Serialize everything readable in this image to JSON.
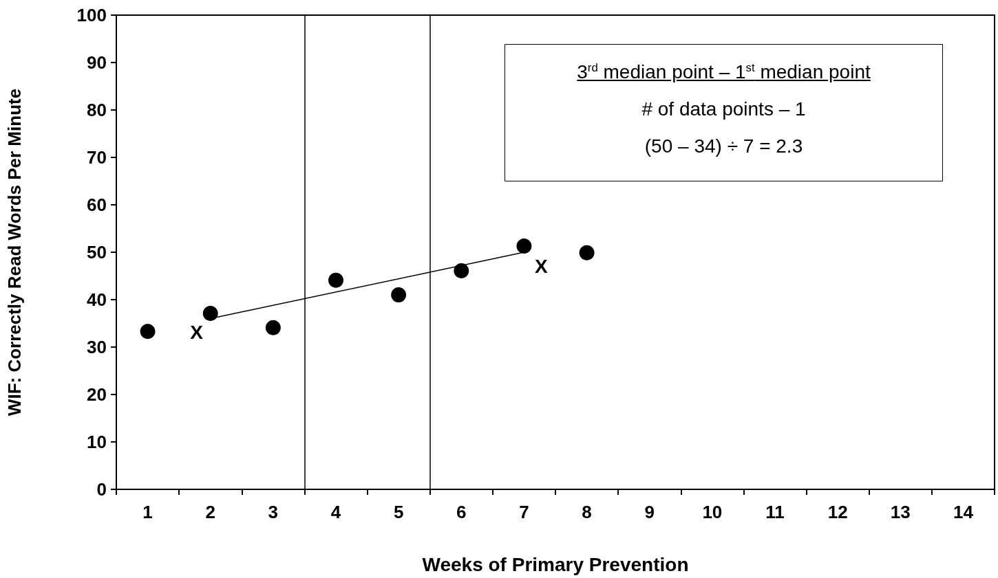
{
  "chart_data": {
    "type": "scatter",
    "xlabel": "Weeks of Primary Prevention",
    "ylabel": "WIF: Correctly Read Words Per Minute",
    "x": [
      1,
      2,
      3,
      4,
      5,
      6,
      7,
      8
    ],
    "series": [
      {
        "color": "#000000",
        "values": [
          33.3,
          37.1,
          34.1,
          44.1,
          41.0,
          46.1,
          51.3,
          49.9
        ]
      },
      {
        "type": "line",
        "color": "#000000",
        "x": [
          2,
          7
        ],
        "values": [
          36,
          50
        ],
        "marker": "none"
      }
    ],
    "marker": "circle",
    "xlim": [
      0.5,
      14.5
    ],
    "xticks": [
      {
        "value": 0.5,
        "label": null
      },
      1,
      {
        "value": 1.5,
        "label": null
      },
      2,
      {
        "value": 2.5,
        "label": null
      },
      3,
      {
        "value": 3.5,
        "label": null
      },
      4,
      {
        "value": 4.5,
        "label": null
      },
      5,
      {
        "value": 5.5,
        "label": null
      },
      6,
      {
        "value": 6.5,
        "label": null
      },
      7,
      {
        "value": 7.5,
        "label": null
      },
      8,
      {
        "value": 8.5,
        "label": null
      },
      9,
      {
        "value": 9.5,
        "label": null
      },
      10,
      {
        "value": 10.5,
        "label": null
      },
      11,
      {
        "value": 11.5,
        "label": null
      },
      12,
      {
        "value": 12.5,
        "label": null
      },
      13,
      {
        "value": 13.5,
        "label": null
      },
      14,
      {
        "value": 14.5,
        "label": null
      }
    ],
    "ylim": [
      0,
      100
    ],
    "yticks": [
      0,
      10,
      20,
      30,
      40,
      50,
      60,
      70,
      80,
      90,
      100
    ],
    "grid": false,
    "ref_lines": [
      {
        "axis": "x",
        "value": 3.5,
        "color": "#000000"
      },
      {
        "axis": "x",
        "value": 5.5,
        "color": "#000000"
      }
    ],
    "annotations": [
      "3$^{rd}$ median point – 1$^{st}$ median point",
      "# of data points – 1",
      "(50 – 34) ÷ 7 = 2.3",
      "X",
      "X"
    ]
  }
}
